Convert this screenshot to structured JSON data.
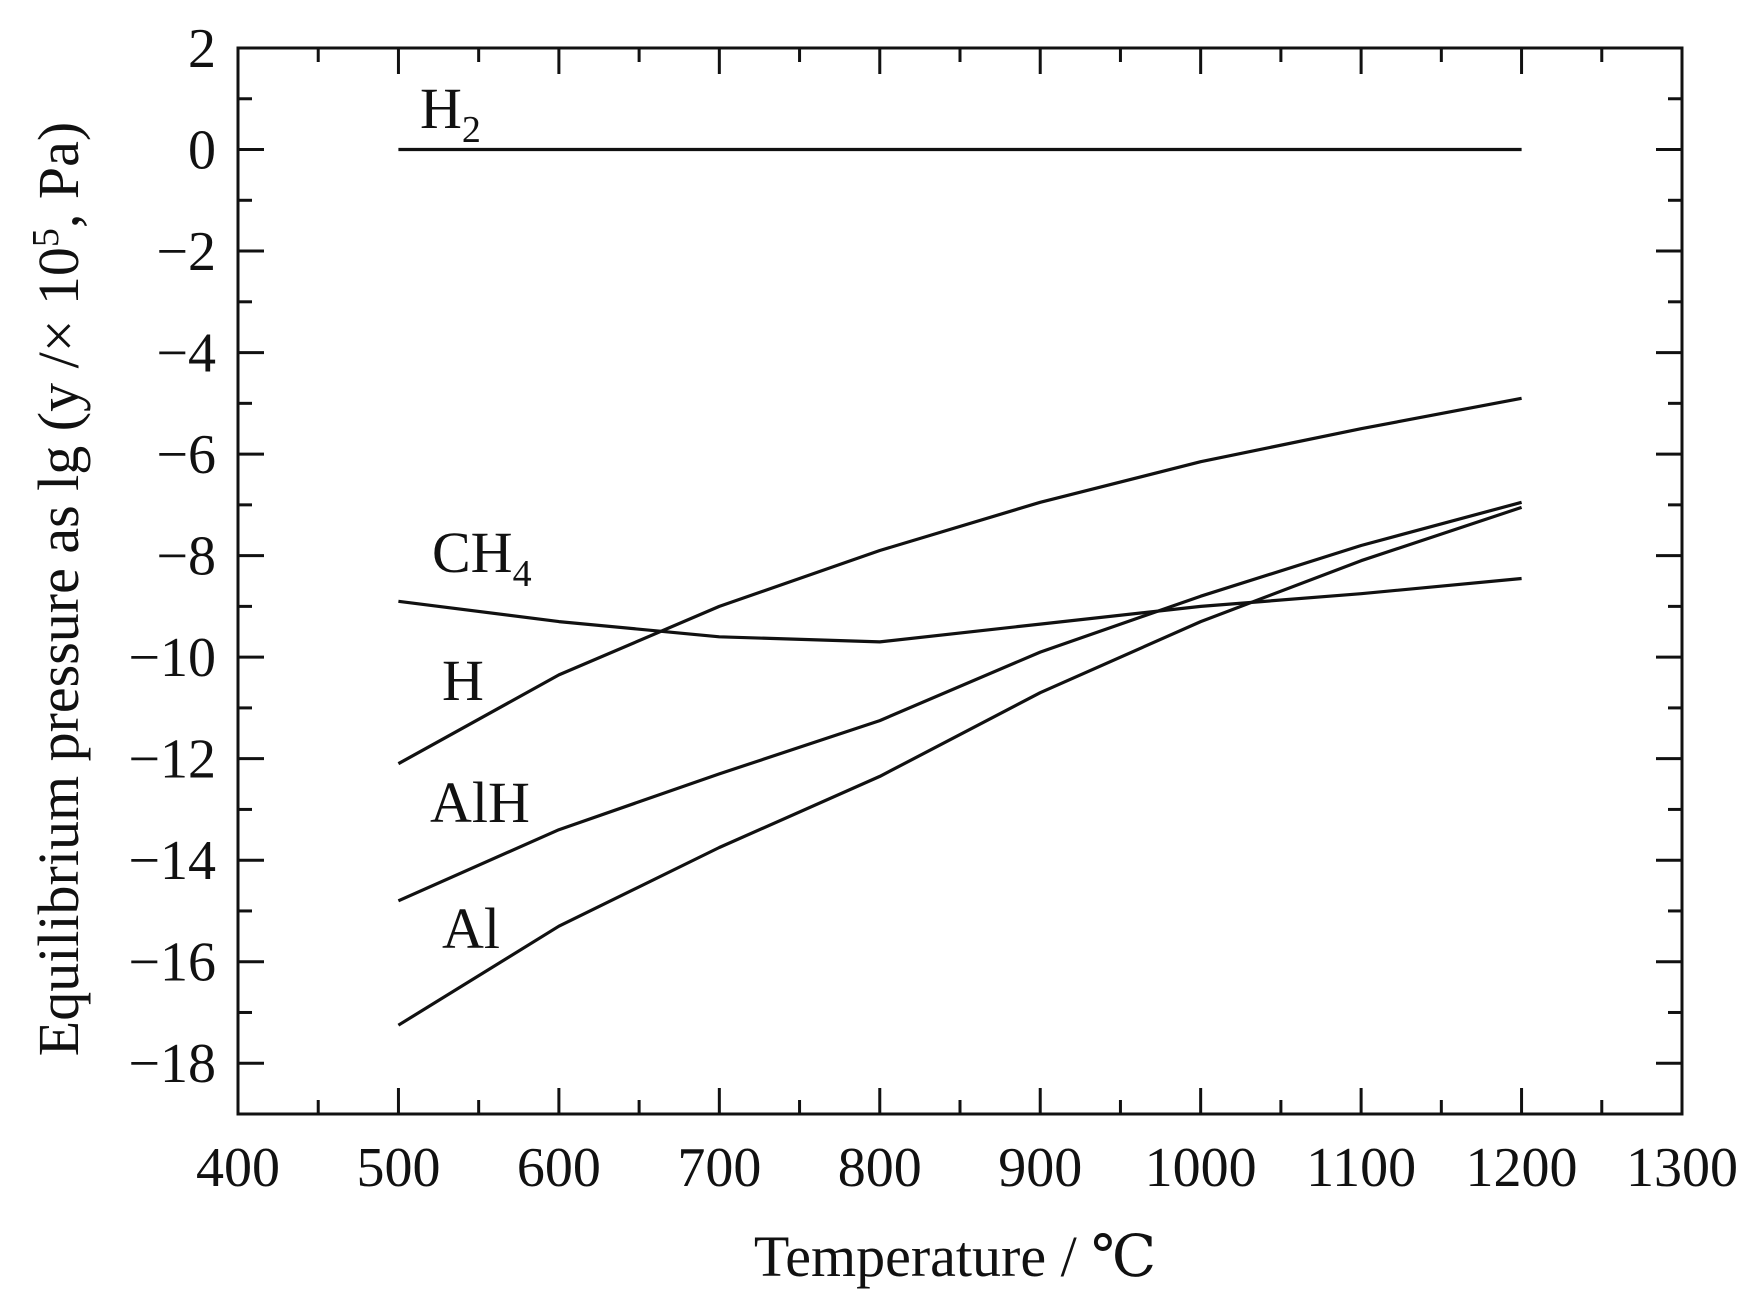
{
  "chart_data": {
    "type": "line",
    "xlabel": "Temperature / ℃",
    "ylabel_parts": {
      "main": "Equilibrium pressure as lg (y /× 10",
      "sup": "5",
      "tail": ", Pa)"
    },
    "xlim": [
      400,
      1300
    ],
    "ylim": [
      -19,
      2
    ],
    "x_ticks": [
      400,
      500,
      600,
      700,
      800,
      900,
      1000,
      1100,
      1200,
      1300
    ],
    "x_tick_labels": [
      "400",
      "500",
      "600",
      "700",
      "800",
      "900",
      "1000",
      "1100",
      "1200",
      "1300"
    ],
    "y_ticks": [
      2,
      0,
      -2,
      -4,
      -6,
      -8,
      -10,
      -12,
      -14,
      -16,
      -18
    ],
    "y_tick_labels": [
      "2",
      "0",
      "−2",
      "−4",
      "−6",
      "−8",
      "−10",
      "−12",
      "−14",
      "−16",
      "−18"
    ],
    "grid": false,
    "legend": "none (inline labels)",
    "x": [
      500,
      600,
      700,
      800,
      900,
      1000,
      1100,
      1200
    ],
    "series": [
      {
        "name": "H₂",
        "label_main": "H",
        "label_sub": "2",
        "values": [
          0,
          0,
          0,
          0,
          0,
          0,
          0,
          0
        ]
      },
      {
        "name": "CH₄",
        "label_main": "CH",
        "label_sub": "4",
        "values": [
          -8.9,
          -9.3,
          -9.6,
          -9.7,
          -9.35,
          -9.0,
          -8.75,
          -8.45
        ]
      },
      {
        "name": "H",
        "label_main": "H",
        "label_sub": "",
        "values": [
          -12.1,
          -10.35,
          -9.0,
          -7.9,
          -6.95,
          -6.15,
          -5.5,
          -4.9
        ]
      },
      {
        "name": "AlH",
        "label_main": "AlH",
        "label_sub": "",
        "values": [
          -14.8,
          -13.4,
          -12.3,
          -11.25,
          -9.9,
          -8.8,
          -7.8,
          -6.95
        ]
      },
      {
        "name": "Al",
        "label_main": "Al",
        "label_sub": "",
        "values": [
          -17.25,
          -15.3,
          -13.75,
          -12.35,
          -10.7,
          -9.3,
          -8.1,
          -7.05
        ]
      }
    ]
  }
}
